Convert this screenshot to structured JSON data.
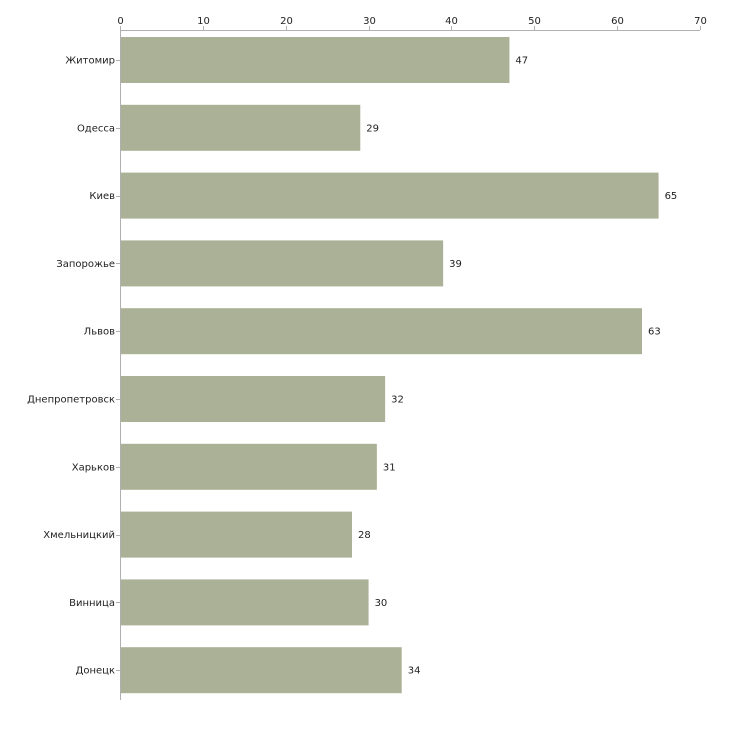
{
  "chart_data": {
    "type": "bar",
    "orientation": "horizontal",
    "categories": [
      "Житомир",
      "Одесса",
      "Киев",
      "Запорожье",
      "Львов",
      "Днепропетровск",
      "Харьков",
      "Хмельницкий",
      "Винница",
      "Донецк"
    ],
    "values": [
      47,
      29,
      65,
      39,
      63,
      32,
      31,
      28,
      30,
      34
    ],
    "xlim": [
      0,
      70
    ],
    "xticks": [
      0,
      10,
      20,
      30,
      40,
      50,
      60,
      70
    ],
    "x_axis_position": "top",
    "grid": false,
    "legend": "none",
    "bar_color": "#abb196",
    "data_labels": true
  }
}
